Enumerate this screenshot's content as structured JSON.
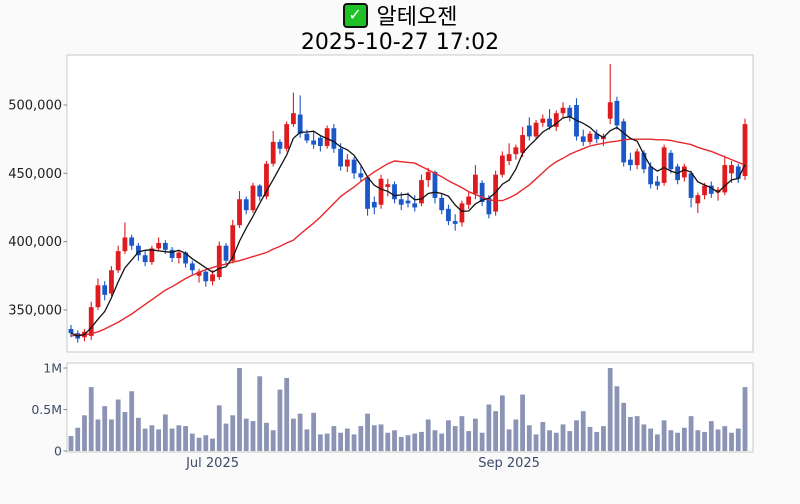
{
  "header": {
    "title": "알테오젠",
    "timestamp": "2025-10-27 17:02",
    "check_glyph": "✓"
  },
  "chart_data": {
    "type": "candlestick",
    "title": "알테오젠",
    "subtitle": "2025-10-27 17:02",
    "legend": "none",
    "grid": "off",
    "price_axis": {
      "side": "left",
      "range_top": 536000,
      "range_bottom": 319000,
      "ticks": [
        {
          "value": 500000,
          "label": "500,000"
        },
        {
          "value": 450000,
          "label": "450,000"
        },
        {
          "value": 400000,
          "label": "400,000"
        },
        {
          "value": 350000,
          "label": "350,000"
        }
      ]
    },
    "volume_axis": {
      "side": "left",
      "ticks": [
        {
          "value": 1.0,
          "label": "1M"
        },
        {
          "value": 0.5,
          "label": "0.5M"
        },
        {
          "value": 0.0,
          "label": "0"
        }
      ]
    },
    "x_axis": {
      "ticks": [
        {
          "index": 21,
          "label": "Jul 2025"
        },
        {
          "index": 65,
          "label": "Sep 2025"
        }
      ]
    },
    "ma_short_window": 5,
    "candles": {
      "open": [
        336,
        333,
        330,
        331,
        352,
        368,
        362,
        379,
        393,
        403,
        397,
        390,
        385,
        395,
        399,
        394,
        388,
        392,
        384,
        375,
        378,
        371,
        374,
        397,
        386,
        412,
        431,
        423,
        441,
        433,
        457,
        473,
        468,
        486,
        493,
        479,
        474,
        476,
        470,
        483,
        468,
        455,
        460,
        450,
        447,
        429,
        427,
        440,
        442,
        431,
        430,
        428,
        428,
        445,
        451,
        432,
        424,
        415,
        414,
        427,
        435,
        443,
        432,
        422,
        449,
        459,
        464,
        465,
        485,
        477,
        487,
        490,
        484,
        494,
        498,
        500,
        477,
        473,
        479,
        475,
        490,
        503,
        488,
        460,
        456,
        465,
        455,
        444,
        443,
        465,
        455,
        447,
        450,
        428,
        434,
        441,
        436,
        436,
        450,
        455,
        448
      ],
      "high": [
        339,
        335,
        336,
        356,
        373,
        371,
        382,
        397,
        414,
        405,
        399,
        393,
        397,
        403,
        401,
        396,
        394,
        393,
        386,
        380,
        379,
        379,
        400,
        399,
        416,
        437,
        433,
        443,
        442,
        459,
        481,
        475,
        488,
        509,
        507,
        482,
        481,
        478,
        485,
        486,
        472,
        464,
        462,
        455,
        448,
        433,
        449,
        446,
        444,
        436,
        436,
        434,
        449,
        454,
        452,
        435,
        427,
        420,
        430,
        436,
        456,
        445,
        434,
        452,
        466,
        472,
        471,
        484,
        491,
        489,
        493,
        497,
        496,
        502,
        500,
        505,
        482,
        481,
        482,
        479,
        530,
        506,
        490,
        465,
        468,
        467,
        458,
        448,
        471,
        467,
        457,
        457,
        452,
        436,
        443,
        444,
        440,
        463,
        459,
        457,
        490
      ],
      "low": [
        330,
        326,
        327,
        328,
        350,
        357,
        360,
        377,
        391,
        394,
        386,
        382,
        383,
        393,
        391,
        385,
        384,
        381,
        376,
        370,
        367,
        368,
        372,
        383,
        384,
        410,
        420,
        421,
        430,
        431,
        455,
        464,
        466,
        484,
        476,
        472,
        468,
        466,
        468,
        465,
        452,
        451,
        446,
        444,
        419,
        420,
        424,
        433,
        428,
        423,
        425,
        422,
        426,
        440,
        428,
        420,
        412,
        408,
        411,
        424,
        431,
        426,
        417,
        419,
        447,
        456,
        460,
        462,
        474,
        475,
        484,
        482,
        481,
        490,
        488,
        474,
        470,
        471,
        472,
        470,
        486,
        482,
        455,
        452,
        453,
        450,
        439,
        438,
        441,
        450,
        442,
        444,
        425,
        421,
        431,
        432,
        430,
        434,
        443,
        443,
        445
      ],
      "close": [
        333,
        329,
        334,
        352,
        368,
        361,
        379,
        393,
        403,
        397,
        390,
        385,
        395,
        399,
        394,
        388,
        392,
        384,
        379,
        378,
        371,
        376,
        397,
        386,
        412,
        431,
        423,
        441,
        433,
        457,
        473,
        468,
        486,
        494,
        479,
        474,
        471,
        470,
        483,
        468,
        455,
        460,
        450,
        447,
        424,
        425,
        446,
        442,
        431,
        427,
        428,
        425,
        445,
        451,
        432,
        423,
        415,
        413,
        428,
        433,
        449,
        429,
        420,
        449,
        463,
        464,
        469,
        478,
        477,
        487,
        490,
        484,
        494,
        498,
        491,
        477,
        473,
        479,
        475,
        477,
        502,
        485,
        458,
        456,
        466,
        453,
        442,
        441,
        469,
        453,
        445,
        455,
        432,
        434,
        441,
        435,
        438,
        456,
        456,
        446,
        486
      ],
      "unit": 1000
    },
    "ma_long": [
      331,
      331.5,
      332,
      332.5,
      334,
      336,
      338.5,
      341,
      344,
      347,
      350.5,
      354,
      357.5,
      361,
      364.5,
      367,
      370,
      373,
      375.5,
      377.5,
      379.5,
      381,
      382.5,
      383.5,
      385,
      386,
      387.5,
      389,
      390.5,
      392,
      394.5,
      396.5,
      399,
      401,
      405.5,
      409.5,
      413.5,
      418,
      423,
      428,
      433,
      436.5,
      440,
      444,
      447.5,
      451,
      454,
      457,
      459,
      458.5,
      458,
      457.5,
      455,
      452.5,
      450,
      447.5,
      444.5,
      442,
      439.5,
      436.5,
      434.5,
      432.5,
      430.5,
      430,
      430,
      432,
      434.5,
      438,
      441.5,
      446,
      450.5,
      455,
      458.5,
      461,
      464,
      466,
      468,
      470,
      471,
      472,
      473,
      473.5,
      474.5,
      475,
      475,
      475,
      475,
      474.5,
      474.5,
      474,
      473,
      472,
      471,
      469,
      467.5,
      466,
      464,
      462,
      460,
      458,
      456
    ],
    "volume_millions": [
      0.18,
      0.28,
      0.43,
      0.77,
      0.38,
      0.54,
      0.38,
      0.62,
      0.47,
      0.72,
      0.4,
      0.27,
      0.31,
      0.26,
      0.44,
      0.27,
      0.31,
      0.3,
      0.21,
      0.16,
      0.19,
      0.15,
      0.55,
      0.33,
      0.43,
      1.0,
      0.39,
      0.36,
      0.9,
      0.34,
      0.25,
      0.74,
      0.88,
      0.39,
      0.45,
      0.26,
      0.46,
      0.2,
      0.21,
      0.3,
      0.22,
      0.27,
      0.2,
      0.3,
      0.45,
      0.31,
      0.32,
      0.22,
      0.25,
      0.17,
      0.19,
      0.21,
      0.23,
      0.38,
      0.25,
      0.21,
      0.37,
      0.3,
      0.42,
      0.24,
      0.39,
      0.22,
      0.56,
      0.48,
      0.67,
      0.26,
      0.38,
      0.68,
      0.31,
      0.2,
      0.35,
      0.25,
      0.22,
      0.32,
      0.24,
      0.37,
      0.48,
      0.29,
      0.23,
      0.3,
      1.0,
      0.78,
      0.58,
      0.41,
      0.42,
      0.32,
      0.27,
      0.2,
      0.37,
      0.25,
      0.22,
      0.28,
      0.42,
      0.25,
      0.23,
      0.36,
      0.26,
      0.3,
      0.22,
      0.27,
      0.77
    ],
    "colors": {
      "up": "#de1b1e",
      "down": "#1b57c6",
      "ma_short": "#141414",
      "ma_long": "#e8282c",
      "volume_bar": "#8b94b5",
      "plot_border": "#c8c8c8",
      "plot_background": "#ffffff",
      "figure_background": "#fafafa",
      "axis_text": "#1f1f1f",
      "axis_text_secondary": "#3d4a68",
      "check_green": "#1fc127"
    }
  }
}
